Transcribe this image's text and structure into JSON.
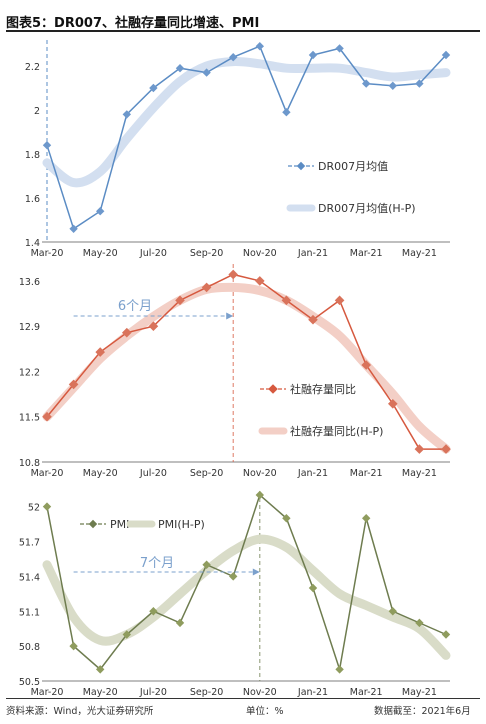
{
  "figure": {
    "title": "图表5：DR007、社融存量同比增速、PMI",
    "source": "资料来源：Wind，光大证券研究所",
    "unit": "单位：%",
    "date": "数据截至：2021年6月"
  },
  "colors": {
    "dr007": "#5b8cc4",
    "dr007_hp": "#d3dff0",
    "tsf": "#d6593f",
    "tsf_hp": "#f3cfc6",
    "pmi": "#6e7c4f",
    "pmi_hp": "#d9dcc8",
    "marker_blue": "#6d98cc",
    "marker_red": "#d9735b",
    "marker_green": "#8f9c5e"
  },
  "chart_data": [
    {
      "type": "line",
      "x": [
        "Mar-20",
        "Apr-20",
        "May-20",
        "Jun-20",
        "Jul-20",
        "Aug-20",
        "Sep-20",
        "Oct-20",
        "Nov-20",
        "Dec-20",
        "Jan-21",
        "Feb-21",
        "Mar-21",
        "Apr-21",
        "May-21",
        "Jun-21"
      ],
      "xticks": [
        "Mar-20",
        "May-20",
        "Jul-20",
        "Sep-20",
        "Nov-20",
        "Jan-21",
        "Mar-21",
        "May-21"
      ],
      "ylim": [
        1.4,
        2.3
      ],
      "yticks": [
        "2.2",
        "2",
        "1.8",
        "1.6",
        "1.4"
      ],
      "series": [
        {
          "name": "DR007月均值",
          "values": [
            1.84,
            1.46,
            1.54,
            1.98,
            2.1,
            2.19,
            2.17,
            2.24,
            2.29,
            1.99,
            2.25,
            2.28,
            2.12,
            2.11,
            2.12,
            2.25
          ]
        },
        {
          "name": "DR007月均值(H-P)",
          "values": [
            1.76,
            1.67,
            1.72,
            1.87,
            2.01,
            2.13,
            2.2,
            2.22,
            2.21,
            2.19,
            2.19,
            2.19,
            2.17,
            2.15,
            2.16,
            2.17
          ]
        }
      ],
      "legend": "bottom-right",
      "marker_month": "Mar-20"
    },
    {
      "type": "line",
      "x": [
        "Mar-20",
        "Apr-20",
        "May-20",
        "Jun-20",
        "Jul-20",
        "Aug-20",
        "Sep-20",
        "Oct-20",
        "Nov-20",
        "Dec-20",
        "Jan-21",
        "Feb-21",
        "Mar-21",
        "Apr-21",
        "May-21",
        "Jun-21"
      ],
      "xticks": [
        "Mar-20",
        "May-20",
        "Jul-20",
        "Sep-20",
        "Nov-20",
        "Jan-21",
        "Mar-21",
        "May-21"
      ],
      "ylim": [
        10.8,
        13.8
      ],
      "yticks": [
        "13.6",
        "12.9",
        "12.2",
        "11.5",
        "10.8"
      ],
      "series": [
        {
          "name": "社融存量同比",
          "values": [
            11.5,
            12.0,
            12.5,
            12.8,
            12.9,
            13.3,
            13.5,
            13.7,
            13.6,
            13.3,
            13.0,
            13.3,
            12.3,
            11.7,
            11.0,
            11.0
          ]
        },
        {
          "name": "社融存量同比(H-P)",
          "values": [
            11.5,
            11.95,
            12.4,
            12.75,
            13.05,
            13.3,
            13.47,
            13.5,
            13.45,
            13.3,
            13.05,
            12.75,
            12.3,
            11.85,
            11.35,
            11.0
          ]
        }
      ],
      "legend": "bottom-right",
      "annotation": "6个月",
      "marker_month": "Oct-20"
    },
    {
      "type": "line",
      "x": [
        "Mar-20",
        "Apr-20",
        "May-20",
        "Jun-20",
        "Jul-20",
        "Aug-20",
        "Sep-20",
        "Oct-20",
        "Nov-20",
        "Dec-20",
        "Jan-21",
        "Feb-21",
        "Mar-21",
        "Apr-21",
        "May-21",
        "Jun-21"
      ],
      "xticks": [
        "Mar-20",
        "May-20",
        "Jul-20",
        "Sep-20",
        "Nov-20",
        "Jan-21",
        "Mar-21",
        "May-21"
      ],
      "ylim": [
        50.5,
        52.1
      ],
      "yticks": [
        "52",
        "51.7",
        "51.4",
        "51.1",
        "50.8",
        "50.5"
      ],
      "series": [
        {
          "name": "PMI",
          "values": [
            52.0,
            50.8,
            50.6,
            50.9,
            51.1,
            51.0,
            51.5,
            51.4,
            52.1,
            51.9,
            51.3,
            50.6,
            51.9,
            51.1,
            51.0,
            50.9
          ]
        },
        {
          "name": "PMI(H-P)",
          "values": [
            51.5,
            51.05,
            50.85,
            50.9,
            51.05,
            51.25,
            51.45,
            51.62,
            51.72,
            51.65,
            51.45,
            51.25,
            51.15,
            51.05,
            50.95,
            50.72
          ]
        }
      ],
      "legend": "top",
      "annotation": "7个月",
      "marker_month": "Nov-20"
    }
  ]
}
